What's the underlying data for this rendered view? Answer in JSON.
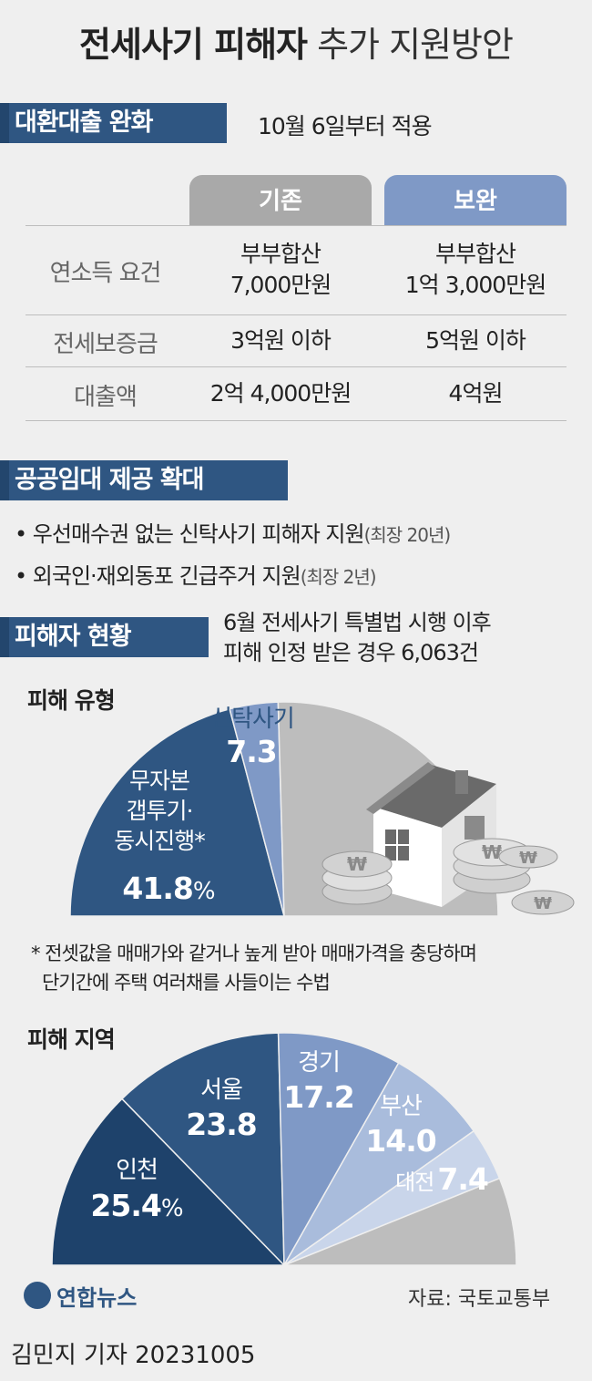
{
  "title": {
    "bold": "전세사기 피해자",
    "normal": "추가 지원방안"
  },
  "loan": {
    "header": "대환대출 완화",
    "note": "10월 6일부터 적용",
    "col_before": "기존",
    "col_after": "보완",
    "rows": [
      {
        "label": "연소득 요건",
        "before_l1": "부부합산",
        "before_l2": "7,000만원",
        "after_l1": "부부합산",
        "after_l2": "1억 3,000만원"
      },
      {
        "label": "전세보증금",
        "before_l1": "3억원 이하",
        "after_l1": "5억원 이하"
      },
      {
        "label": "대출액",
        "before_l1": "2억 4,000만원",
        "after_l1": "4억원"
      }
    ]
  },
  "public_rental": {
    "header": "공공임대 제공 확대",
    "items": [
      {
        "text": "• 우선매수권 없는 신탁사기 피해자 지원",
        "note": "(최장 20년)"
      },
      {
        "text": "• 외국인·재외동포 긴급주거 지원",
        "note": "(최장 2년)"
      }
    ]
  },
  "status": {
    "header": "피해자 현황",
    "note_l1": "6월 전세사기 특별법 시행 이후",
    "note_l2": "피해 인정 받은 경우 6,063건"
  },
  "type_chart_title": "피해 유형",
  "type_labels": {
    "trust": "신탁사기",
    "trust_val": "7.3",
    "gap_l1": "무자본",
    "gap_l2": "갭투기·",
    "gap_l3": "동시진행*",
    "gap_val": "41.8",
    "pct": "%"
  },
  "footnote_l1": "* 전셋값을 매매가와 같거나 높게 받아 매매가격을 충당하며",
  "footnote_l2": "단기간에 주택 여러채를 사들이는 수법",
  "region_chart_title": "피해 지역",
  "region_labels": {
    "incheon": "인천",
    "incheon_val": "25.4",
    "pct": "%",
    "seoul": "서울",
    "seoul_val": "23.8",
    "gyeonggi": "경기",
    "gyeonggi_val": "17.2",
    "busan": "부산",
    "busan_val": "14.0",
    "daejeon": "대전",
    "daejeon_val": "7.4"
  },
  "logo_text": "연합뉴스",
  "source": "자료: 국토교통부",
  "credit": "김민지 기자  20231005",
  "colors": {
    "navy": "#2f5682",
    "dark_navy": "#1e426b",
    "mid_blue": "#4f73a5",
    "light_blue": "#7f99c6",
    "pale_blue": "#a9bcdc",
    "paler_blue": "#c9d5ea",
    "gray": "#bdbdbd",
    "head_gray": "#a9a9a9"
  },
  "chart_data": [
    {
      "type": "pie",
      "title": "피해 유형",
      "unit": "%",
      "labels": [
        "무자본 갭투기·동시진행*",
        "신탁사기",
        ""
      ],
      "values": [
        41.8,
        7.3,
        50.9
      ]
    },
    {
      "type": "pie",
      "title": "피해 지역",
      "unit": "%",
      "labels": [
        "인천",
        "서울",
        "경기",
        "부산",
        "대전",
        ""
      ],
      "values": [
        25.4,
        23.8,
        17.2,
        14.0,
        7.4,
        12.2
      ]
    }
  ]
}
